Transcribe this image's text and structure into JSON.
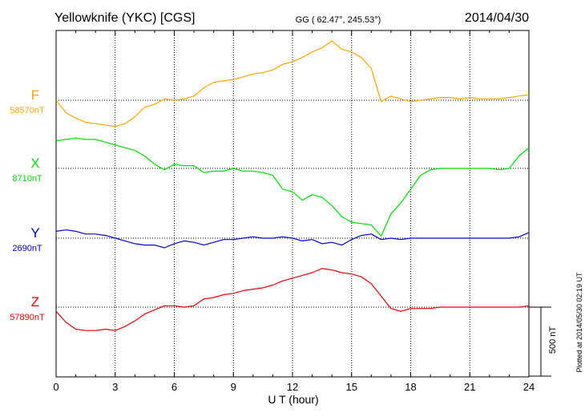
{
  "header": {
    "station": "Yellowknife (YKC)  [CGS]",
    "coords": "GG ( 62.47°, 245.53°)",
    "date": "2014/04/30"
  },
  "xaxis": {
    "label": "U T (hour)",
    "ticks": [
      "0",
      "3",
      "6",
      "9",
      "12",
      "15",
      "18",
      "21",
      "24"
    ],
    "range": [
      0,
      24
    ]
  },
  "scale_label": "500 nT",
  "scale_nT": 500,
  "plotted_note": "Plotted at 2014/05/30 02:19 UT",
  "colors": {
    "F": "#ffa500",
    "X": "#00dd00",
    "Y": "#0000dd",
    "Z": "#ee0000"
  },
  "chart_data": {
    "type": "line",
    "x_unit": "hour UT",
    "y_unit": "nT",
    "x": [
      0,
      0.5,
      1,
      1.5,
      2,
      2.5,
      3,
      3.5,
      4,
      4.5,
      5,
      5.5,
      6,
      6.5,
      7,
      7.5,
      8,
      8.5,
      9,
      9.5,
      10,
      10.5,
      11,
      11.5,
      12,
      12.5,
      13,
      13.5,
      14,
      14.5,
      15,
      15.5,
      16,
      16.5,
      17,
      17.5,
      18,
      18.5,
      19,
      19.5,
      20,
      20.5,
      21,
      21.5,
      22,
      22.5,
      23,
      23.5,
      24
    ],
    "series": [
      {
        "name": "F",
        "baseline_label": "58570nT",
        "baseline": 58570,
        "values": [
          58570,
          58480,
          58440,
          58410,
          58400,
          58390,
          58380,
          58400,
          58450,
          58520,
          58540,
          58580,
          58570,
          58580,
          58600,
          58660,
          58700,
          58710,
          58720,
          58740,
          58760,
          58770,
          58790,
          58830,
          58850,
          58880,
          58920,
          58950,
          59000,
          58940,
          58920,
          58880,
          58800,
          58560,
          58600,
          58580,
          58560,
          58570,
          58580,
          58590,
          58590,
          58580,
          58590,
          58580,
          58580,
          58580,
          58590,
          58600,
          58610
        ]
      },
      {
        "name": "X",
        "baseline_label": "8710nT",
        "baseline": 8710,
        "values": [
          8910,
          8920,
          8930,
          8920,
          8920,
          8900,
          8880,
          8860,
          8840,
          8800,
          8740,
          8700,
          8740,
          8730,
          8730,
          8680,
          8690,
          8690,
          8710,
          8690,
          8690,
          8680,
          8660,
          8560,
          8540,
          8480,
          8520,
          8500,
          8440,
          8360,
          8320,
          8310,
          8300,
          8220,
          8380,
          8460,
          8560,
          8660,
          8700,
          8710,
          8710,
          8710,
          8710,
          8710,
          8710,
          8700,
          8710,
          8800,
          8860
        ]
      },
      {
        "name": "Y",
        "baseline_label": "2690nT",
        "baseline": 2690,
        "values": [
          2740,
          2750,
          2740,
          2720,
          2720,
          2710,
          2690,
          2670,
          2650,
          2640,
          2640,
          2620,
          2650,
          2670,
          2660,
          2640,
          2660,
          2680,
          2680,
          2690,
          2700,
          2690,
          2690,
          2700,
          2690,
          2670,
          2680,
          2650,
          2660,
          2640,
          2680,
          2710,
          2720,
          2680,
          2690,
          2680,
          2690,
          2690,
          2690,
          2690,
          2690,
          2690,
          2690,
          2690,
          2690,
          2690,
          2690,
          2700,
          2730
        ]
      },
      {
        "name": "Z",
        "baseline_label": "57890nT",
        "baseline": 57890,
        "values": [
          57860,
          57780,
          57730,
          57720,
          57720,
          57730,
          57720,
          57750,
          57790,
          57840,
          57870,
          57900,
          57900,
          57890,
          57900,
          57950,
          57960,
          57980,
          57990,
          58010,
          58020,
          58030,
          58050,
          58080,
          58100,
          58120,
          58140,
          58170,
          58160,
          58140,
          58130,
          58110,
          58060,
          57970,
          57880,
          57860,
          57880,
          57880,
          57880,
          57890,
          57890,
          57890,
          57890,
          57890,
          57890,
          57890,
          57890,
          57890,
          57900
        ]
      }
    ],
    "grid": "on (dotted)"
  }
}
